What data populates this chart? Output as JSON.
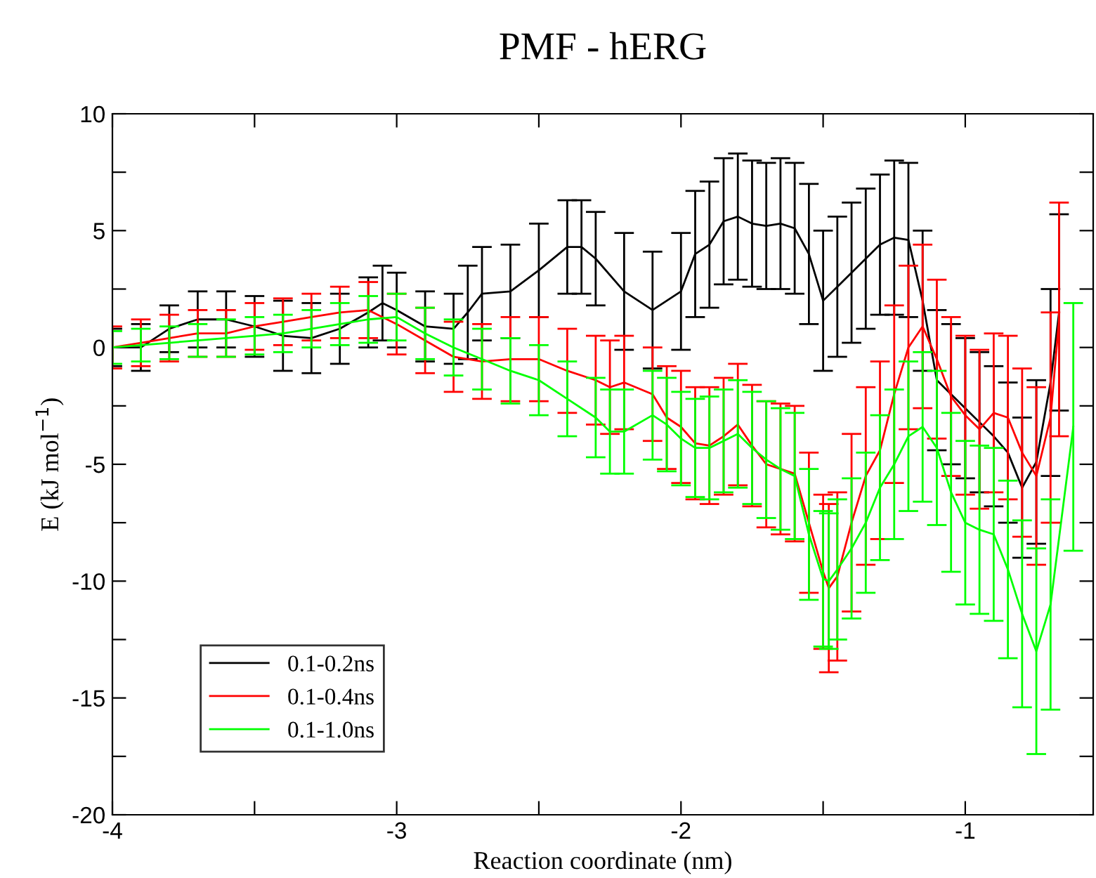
{
  "chart_data": {
    "type": "line",
    "title": "PMF - hERG",
    "xlabel": "Reaction coordinate (nm)",
    "ylabel": "E (kJ mol$^{−1}$)",
    "xlim": [
      -4,
      -0.55
    ],
    "xticks": [
      -4,
      {
        "value": -3.5,
        "label": null
      },
      -3,
      {
        "value": -2.5,
        "label": null
      },
      -2,
      {
        "value": -1.5,
        "label": null
      },
      -1
    ],
    "ylim": [
      -20,
      10
    ],
    "yticks": [
      -20,
      {
        "value": -17.5,
        "label": null
      },
      -15,
      {
        "value": -12.5,
        "label": null
      },
      -10,
      {
        "value": -7.5,
        "label": null
      },
      -5,
      {
        "value": -2.5,
        "label": null
      },
      0,
      {
        "value": 2.5,
        "label": null
      },
      5,
      {
        "value": 7.5,
        "label": null
      },
      10
    ],
    "grid": false,
    "legend": "bottom left",
    "marker": "none",
    "line_style": "solid",
    "series": [
      {
        "name": "0.1-0.2ns",
        "color": "#000000",
        "x": [
          -4.0,
          -3.9,
          -3.8,
          -3.7,
          -3.6,
          -3.5,
          -3.4,
          -3.3,
          -3.2,
          -3.1,
          -3.05,
          -3.0,
          -2.9,
          -2.8,
          -2.75,
          -2.7,
          -2.6,
          -2.5,
          -2.4,
          -2.35,
          -2.3,
          -2.2,
          -2.1,
          -2.0,
          -1.95,
          -1.9,
          -1.85,
          -1.8,
          -1.75,
          -1.7,
          -1.65,
          -1.6,
          -1.55,
          -1.5,
          -1.45,
          -1.4,
          -1.35,
          -1.3,
          -1.25,
          -1.2,
          -1.15,
          -1.1,
          -1.05,
          -1.0,
          -0.95,
          -0.9,
          -0.85,
          -0.8,
          -0.75,
          -0.7,
          -0.67
        ],
        "values": [
          0.0,
          0.0,
          0.8,
          1.2,
          1.2,
          0.9,
          0.5,
          0.4,
          0.8,
          1.5,
          1.9,
          1.6,
          0.9,
          0.8,
          1.5,
          2.3,
          2.4,
          3.3,
          4.3,
          4.3,
          3.8,
          2.4,
          1.6,
          2.4,
          4.0,
          4.4,
          5.4,
          5.6,
          5.3,
          5.2,
          5.3,
          5.1,
          4.0,
          2.0,
          2.6,
          3.2,
          3.8,
          4.4,
          4.7,
          4.6,
          2.0,
          -1.4,
          -2.0,
          -2.6,
          -3.2,
          -3.8,
          -4.5,
          -6.0,
          -4.9,
          -1.5,
          1.5
        ],
        "errors": [
          0.8,
          1.0,
          1.0,
          1.2,
          1.2,
          1.3,
          1.5,
          1.5,
          1.5,
          1.5,
          1.6,
          1.6,
          1.5,
          1.5,
          2.0,
          2.0,
          2.0,
          2.0,
          2.0,
          2.0,
          2.0,
          2.5,
          2.5,
          2.5,
          2.7,
          2.7,
          2.7,
          2.7,
          2.7,
          2.7,
          2.8,
          2.8,
          3.0,
          3.0,
          3.0,
          3.0,
          3.0,
          3.0,
          3.3,
          3.3,
          3.0,
          3.0,
          3.0,
          3.0,
          3.0,
          3.0,
          3.0,
          3.0,
          3.5,
          4.0,
          4.2
        ]
      },
      {
        "name": "0.1-0.4ns",
        "color": "#ff0000",
        "x": [
          -4.0,
          -3.9,
          -3.8,
          -3.7,
          -3.6,
          -3.5,
          -3.4,
          -3.3,
          -3.2,
          -3.1,
          -3.0,
          -2.9,
          -2.8,
          -2.7,
          -2.6,
          -2.5,
          -2.4,
          -2.3,
          -2.25,
          -2.2,
          -2.1,
          -2.05,
          -2.0,
          -1.95,
          -1.9,
          -1.85,
          -1.8,
          -1.75,
          -1.7,
          -1.65,
          -1.6,
          -1.55,
          -1.5,
          -1.48,
          -1.45,
          -1.4,
          -1.35,
          -1.3,
          -1.25,
          -1.2,
          -1.15,
          -1.1,
          -1.05,
          -1.0,
          -0.95,
          -0.9,
          -0.85,
          -0.8,
          -0.75,
          -0.7,
          -0.67
        ],
        "values": [
          0.0,
          0.2,
          0.4,
          0.6,
          0.6,
          0.9,
          1.1,
          1.3,
          1.5,
          1.6,
          1.0,
          0.3,
          -0.4,
          -0.6,
          -0.5,
          -0.5,
          -1.0,
          -1.4,
          -1.7,
          -1.5,
          -2.0,
          -3.0,
          -3.4,
          -4.1,
          -4.2,
          -3.8,
          -3.3,
          -4.2,
          -5.0,
          -5.2,
          -5.4,
          -7.5,
          -9.6,
          -10.3,
          -9.8,
          -7.5,
          -5.5,
          -4.4,
          -2.0,
          0.0,
          0.9,
          -0.5,
          -2.1,
          -2.9,
          -3.5,
          -2.8,
          -3.0,
          -4.5,
          -5.5,
          -3.0,
          1.2
        ],
        "errors": [
          0.9,
          1.0,
          1.0,
          1.0,
          1.0,
          1.0,
          1.0,
          1.0,
          1.1,
          1.2,
          1.3,
          1.4,
          1.5,
          1.6,
          1.8,
          1.8,
          1.8,
          1.9,
          2.0,
          2.0,
          2.0,
          2.2,
          2.4,
          2.4,
          2.5,
          2.5,
          2.6,
          2.6,
          2.7,
          2.8,
          2.9,
          3.0,
          3.3,
          3.6,
          3.6,
          3.8,
          3.8,
          3.8,
          3.8,
          3.5,
          3.5,
          3.4,
          3.4,
          3.4,
          3.4,
          3.4,
          3.5,
          3.6,
          3.8,
          4.5,
          5.0
        ]
      },
      {
        "name": "0.1-1.0ns",
        "color": "#00ff00",
        "x": [
          -4.0,
          -3.9,
          -3.8,
          -3.7,
          -3.6,
          -3.5,
          -3.4,
          -3.3,
          -3.2,
          -3.1,
          -3.0,
          -2.9,
          -2.8,
          -2.7,
          -2.6,
          -2.5,
          -2.4,
          -2.3,
          -2.25,
          -2.2,
          -2.1,
          -2.05,
          -2.0,
          -1.95,
          -1.9,
          -1.85,
          -1.8,
          -1.75,
          -1.7,
          -1.65,
          -1.6,
          -1.55,
          -1.5,
          -1.48,
          -1.45,
          -1.4,
          -1.35,
          -1.3,
          -1.25,
          -1.2,
          -1.15,
          -1.1,
          -1.05,
          -1.0,
          -0.95,
          -0.9,
          -0.85,
          -0.8,
          -0.75,
          -0.7,
          -0.62
        ],
        "values": [
          0.0,
          0.1,
          0.2,
          0.3,
          0.4,
          0.5,
          0.6,
          0.8,
          1.0,
          1.2,
          1.3,
          0.6,
          0.0,
          -0.5,
          -1.0,
          -1.4,
          -2.2,
          -3.0,
          -3.6,
          -3.6,
          -2.9,
          -3.3,
          -3.9,
          -4.3,
          -4.3,
          -4.0,
          -3.7,
          -4.3,
          -4.8,
          -5.2,
          -5.5,
          -8.0,
          -9.9,
          -10.0,
          -9.5,
          -8.6,
          -7.5,
          -6.0,
          -5.0,
          -3.8,
          -3.4,
          -4.3,
          -6.2,
          -7.5,
          -7.8,
          -8.0,
          -9.5,
          -11.4,
          -13.0,
          -11.0,
          -3.4
        ],
        "errors": [
          0.7,
          0.7,
          0.7,
          0.7,
          0.8,
          0.8,
          0.8,
          0.8,
          0.9,
          1.0,
          1.0,
          1.1,
          1.2,
          1.3,
          1.4,
          1.5,
          1.6,
          1.7,
          1.8,
          1.8,
          1.9,
          2.0,
          2.0,
          2.1,
          2.2,
          2.2,
          2.3,
          2.4,
          2.5,
          2.6,
          2.7,
          2.8,
          2.9,
          2.9,
          3.0,
          3.0,
          3.0,
          3.1,
          3.2,
          3.2,
          3.2,
          3.3,
          3.4,
          3.5,
          3.6,
          3.7,
          3.8,
          4.0,
          4.4,
          4.5,
          5.3
        ]
      }
    ]
  }
}
